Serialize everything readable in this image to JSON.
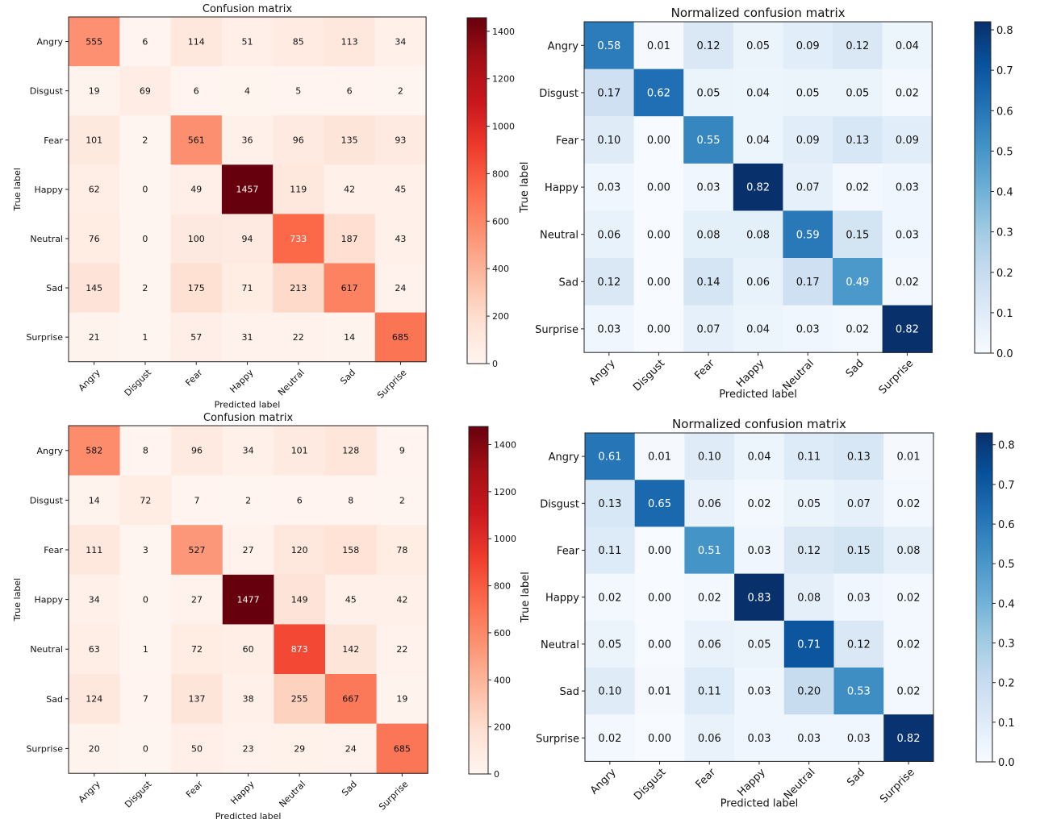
{
  "chart_data": [
    {
      "type": "heatmap",
      "title": "Confusion matrix",
      "xlabel": "Predicted label",
      "ylabel": "True label",
      "labels": [
        "Angry",
        "Disgust",
        "Fear",
        "Happy",
        "Neutral",
        "Sad",
        "Surprise"
      ],
      "cmap": "Reds",
      "clim": [
        0,
        1457
      ],
      "colorbar_ticks": [
        0,
        200,
        400,
        600,
        800,
        1000,
        1200,
        1400
      ],
      "value_format": "int",
      "values": [
        [
          555,
          6,
          114,
          51,
          85,
          113,
          34
        ],
        [
          19,
          69,
          6,
          4,
          5,
          6,
          2
        ],
        [
          101,
          2,
          561,
          36,
          96,
          135,
          93
        ],
        [
          62,
          0,
          49,
          1457,
          119,
          42,
          45
        ],
        [
          76,
          0,
          100,
          94,
          733,
          187,
          43
        ],
        [
          145,
          2,
          175,
          71,
          213,
          617,
          24
        ],
        [
          21,
          1,
          57,
          31,
          22,
          14,
          685
        ]
      ]
    },
    {
      "type": "heatmap",
      "title": "Normalized confusion matrix",
      "xlabel": "Predicted label",
      "ylabel": "True label",
      "labels": [
        "Angry",
        "Disgust",
        "Fear",
        "Happy",
        "Neutral",
        "Sad",
        "Surprise"
      ],
      "cmap": "Blues",
      "clim": [
        0,
        0.82
      ],
      "colorbar_ticks": [
        0.0,
        0.1,
        0.2,
        0.3,
        0.4,
        0.5,
        0.6,
        0.7,
        0.8
      ],
      "value_format": "2f",
      "values": [
        [
          0.58,
          0.01,
          0.12,
          0.05,
          0.09,
          0.12,
          0.04
        ],
        [
          0.17,
          0.62,
          0.05,
          0.04,
          0.05,
          0.05,
          0.02
        ],
        [
          0.1,
          0.0,
          0.55,
          0.04,
          0.09,
          0.13,
          0.09
        ],
        [
          0.03,
          0.0,
          0.03,
          0.82,
          0.07,
          0.02,
          0.03
        ],
        [
          0.06,
          0.0,
          0.08,
          0.08,
          0.59,
          0.15,
          0.03
        ],
        [
          0.12,
          0.0,
          0.14,
          0.06,
          0.17,
          0.49,
          0.02
        ],
        [
          0.03,
          0.0,
          0.07,
          0.04,
          0.03,
          0.02,
          0.82
        ]
      ]
    },
    {
      "type": "heatmap",
      "title": "Confusion matrix",
      "xlabel": "Predicted label",
      "ylabel": "True label",
      "labels": [
        "Angry",
        "Disgust",
        "Fear",
        "Happy",
        "Neutral",
        "Sad",
        "Surprise"
      ],
      "cmap": "Reds",
      "clim": [
        0,
        1477
      ],
      "colorbar_ticks": [
        0,
        200,
        400,
        600,
        800,
        1000,
        1200,
        1400
      ],
      "value_format": "int",
      "values": [
        [
          582,
          8,
          96,
          34,
          101,
          128,
          9
        ],
        [
          14,
          72,
          7,
          2,
          6,
          8,
          2
        ],
        [
          111,
          3,
          527,
          27,
          120,
          158,
          78
        ],
        [
          34,
          0,
          27,
          1477,
          149,
          45,
          42
        ],
        [
          63,
          1,
          72,
          60,
          873,
          142,
          22
        ],
        [
          124,
          7,
          137,
          38,
          255,
          667,
          19
        ],
        [
          20,
          0,
          50,
          23,
          29,
          24,
          685
        ]
      ]
    },
    {
      "type": "heatmap",
      "title": "Normalized confusion matrix",
      "xlabel": "Predicted label",
      "ylabel": "True label",
      "labels": [
        "Angry",
        "Disgust",
        "Fear",
        "Happy",
        "Neutral",
        "Sad",
        "Surprise"
      ],
      "cmap": "Blues",
      "clim": [
        0,
        0.83
      ],
      "colorbar_ticks": [
        0.0,
        0.1,
        0.2,
        0.3,
        0.4,
        0.5,
        0.6,
        0.7,
        0.8
      ],
      "value_format": "2f",
      "values": [
        [
          0.61,
          0.01,
          0.1,
          0.04,
          0.11,
          0.13,
          0.01
        ],
        [
          0.13,
          0.65,
          0.06,
          0.02,
          0.05,
          0.07,
          0.02
        ],
        [
          0.11,
          0.0,
          0.51,
          0.03,
          0.12,
          0.15,
          0.08
        ],
        [
          0.02,
          0.0,
          0.02,
          0.83,
          0.08,
          0.03,
          0.02
        ],
        [
          0.05,
          0.0,
          0.06,
          0.05,
          0.71,
          0.12,
          0.02
        ],
        [
          0.1,
          0.01,
          0.11,
          0.03,
          0.2,
          0.53,
          0.02
        ],
        [
          0.02,
          0.0,
          0.06,
          0.03,
          0.03,
          0.03,
          0.82
        ]
      ]
    }
  ]
}
